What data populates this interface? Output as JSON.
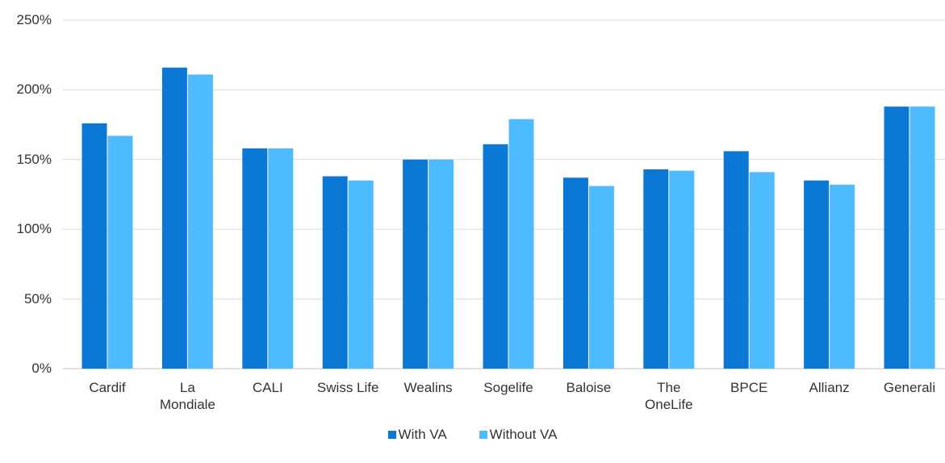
{
  "chart_data": {
    "type": "bar",
    "categories": [
      "Cardif",
      "La Mondiale",
      "CALI",
      "Swiss Life",
      "Wealins",
      "Sogelife",
      "Baloise",
      "The OneLife",
      "BPCE",
      "Allianz",
      "Generali"
    ],
    "series": [
      {
        "name": "With VA",
        "color": "#0a78d4",
        "values": [
          176,
          216,
          158,
          138,
          150,
          161,
          137,
          143,
          156,
          135,
          188
        ]
      },
      {
        "name": "Without VA",
        "color": "#4fbbff",
        "values": [
          167,
          211,
          158,
          135,
          150,
          179,
          131,
          142,
          141,
          132,
          188
        ]
      }
    ],
    "ylim": [
      0,
      250
    ],
    "yticks": [
      {
        "value": 0,
        "label": "0%"
      },
      {
        "value": 50,
        "label": "50%"
      },
      {
        "value": 100,
        "label": "100%"
      },
      {
        "value": 150,
        "label": "150%"
      },
      {
        "value": 200,
        "label": "200%"
      },
      {
        "value": 250,
        "label": "250%"
      }
    ],
    "grid": true,
    "legend": "bottom"
  }
}
